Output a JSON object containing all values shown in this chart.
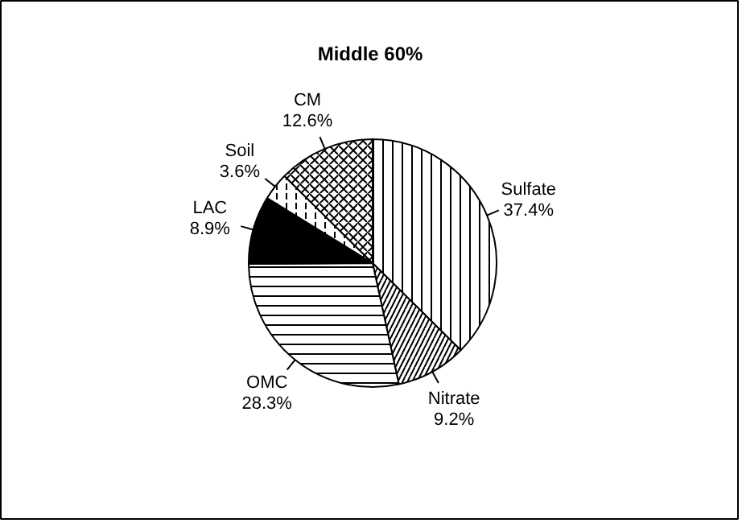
{
  "chart_data": {
    "type": "pie",
    "title": "Middle 60%",
    "categories": [
      "Sulfate",
      "Nitrate",
      "OMC",
      "LAC",
      "Soil",
      "CM"
    ],
    "values": [
      37.4,
      9.2,
      28.3,
      8.9,
      3.6,
      12.6
    ],
    "value_labels": [
      "37.4%",
      "9.2%",
      "28.3%",
      "8.9%",
      "3.6%",
      "12.6%"
    ],
    "colors": [
      "#ffffff",
      "#ffffff",
      "#ffffff",
      "#000000",
      "#ffffff",
      "#ffffff"
    ]
  }
}
